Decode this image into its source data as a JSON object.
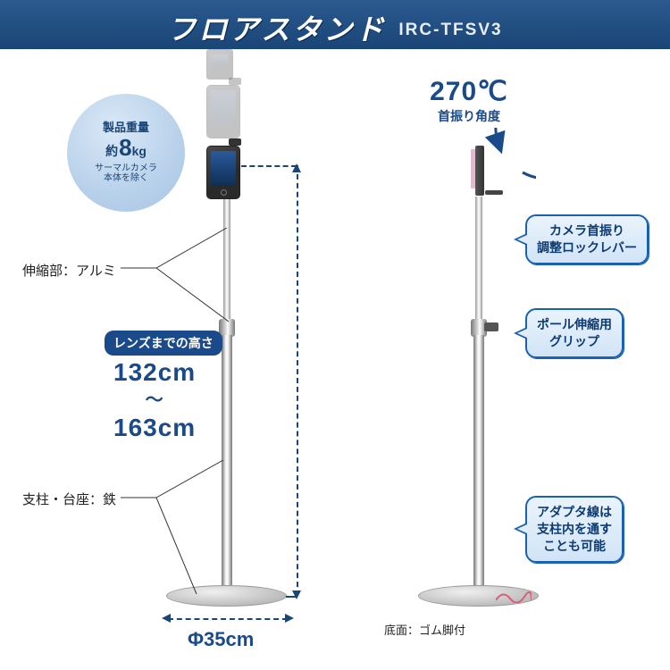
{
  "header": {
    "title": "フロアスタンド",
    "model": "IRC-TFSV3"
  },
  "weight_badge": {
    "line1": "製品重量",
    "prefix": "約",
    "value": "8",
    "unit": "kg",
    "note1": "サーマルカメラ",
    "note2": "本体を除く"
  },
  "labels": {
    "extension": "伸縮部：アルミ",
    "post_base": "支柱・台座：鉄",
    "lens_height_title": "レンズまでの高さ",
    "height_min": "132cm",
    "height_max": "163cm",
    "diameter": "Φ35cm",
    "bottom_note": "底面：ゴム脚付"
  },
  "rotation": {
    "value": "270℃",
    "caption": "首振り角度"
  },
  "callouts": {
    "lever": "カメラ首振り\n調整ロックレバー",
    "grip": "ポール伸縮用\nグリップ",
    "adapter": "アダプタ線は\n支柱内を通す\nことも可能"
  },
  "colors": {
    "header_grad_top": "#2b5a8f",
    "header_grad_bottom": "#1a4577",
    "accent": "#1a4a8a",
    "callout_border": "#1a61b3",
    "callout_fill_top": "#eaf3fc",
    "callout_fill_bottom": "#d1e4f6",
    "badge_fill": "#b8d1ea",
    "dash": "#1a4577"
  }
}
